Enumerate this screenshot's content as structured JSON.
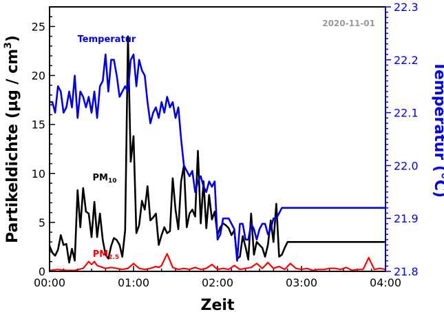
{
  "chart_data": {
    "type": "line",
    "date": "2020-11-01",
    "xlabel": "Zeit",
    "ylabel_left": "Partikeldichte (µg / cm³)",
    "ylabel_left_parts": {
      "main": "Partikeldichte (µg / cm",
      "sup": "3",
      "close": ")"
    },
    "ylabel_right": "Temperatur (°C)",
    "x_ticks": [
      "00:00",
      "01:00",
      "02:00",
      "03:00",
      "04:00"
    ],
    "x_range_minutes": [
      0,
      240
    ],
    "y_left_range": [
      0,
      27
    ],
    "y_left_ticks": [
      0,
      5,
      10,
      15,
      20,
      25
    ],
    "y_right_range": [
      21.8,
      22.3
    ],
    "y_right_ticks": [
      "21.8",
      "21.9",
      "22.0",
      "22.1",
      "22.2",
      "22.3"
    ],
    "colors": {
      "pm10": "#000000",
      "pm25": "#ff0000",
      "temperature": "#0000e0"
    },
    "series": [
      {
        "name": "PM10",
        "label_main": "PM",
        "label_sub": "10",
        "axis": "left",
        "x": [
          0,
          2,
          4,
          6,
          8,
          10,
          12,
          14,
          16,
          18,
          20,
          22,
          24,
          26,
          28,
          30,
          32,
          34,
          36,
          38,
          40,
          42,
          44,
          46,
          48,
          50,
          52,
          54,
          56,
          58,
          60,
          62,
          64,
          66,
          68,
          70,
          72,
          74,
          76,
          78,
          80,
          82,
          84,
          86,
          88,
          90,
          92,
          94,
          96,
          98,
          100,
          102,
          104,
          106,
          108,
          110,
          112,
          114,
          116,
          118,
          120,
          122,
          124,
          126,
          128,
          130,
          132,
          134,
          136,
          138,
          140,
          142,
          144,
          146,
          148,
          150,
          152,
          154,
          156,
          158,
          160,
          162,
          164,
          166,
          168,
          170,
          172,
          174,
          176,
          178,
          180,
          182,
          184,
          186,
          188,
          190,
          192,
          194,
          196,
          198,
          200,
          202,
          204,
          206,
          208,
          210,
          212,
          214,
          216,
          218,
          220,
          222,
          224,
          226,
          228,
          230,
          232,
          234,
          236,
          238,
          240
        ],
        "values": [
          2.6,
          1.9,
          1.6,
          2.2,
          3.7,
          2.7,
          2.8,
          0.9,
          2.3,
          1.1,
          8.3,
          4.5,
          8.5,
          6.1,
          5.9,
          3.5,
          7.1,
          3.5,
          5.9,
          3.2,
          1.7,
          1.3,
          2.6,
          3.4,
          3.2,
          2.7,
          1.5,
          4.2,
          24,
          11.2,
          13.8,
          3.9,
          4.7,
          7.2,
          6.3,
          8.7,
          5.2,
          5.5,
          5.9,
          2.7,
          3.7,
          4.5,
          3.9,
          4.1,
          9.5,
          6.3,
          4.3,
          9.2,
          10.8,
          4.5,
          5.9,
          6.3,
          5.6,
          12.3,
          4.9,
          9.2,
          4.4,
          7.8,
          5.3,
          6.1,
          3.7,
          4.5,
          4.9,
          4.7,
          4.4,
          3.7,
          4.2,
          1.3,
          1.5,
          3.6,
          2.5,
          1.2,
          5.9,
          1.7,
          3.0,
          2.7,
          2.4,
          1.5,
          2.7,
          5.2,
          3.0,
          6.9,
          1.5,
          1.7,
          2.4,
          3.0,
          3.0,
          3.0,
          3.0,
          3.0,
          3.0,
          3.0,
          3.0,
          3.0,
          3.0,
          3.0,
          3.0,
          3.0,
          3.0,
          3.0,
          3.0,
          3.0,
          3.0,
          3.0,
          3.0,
          3.0,
          3.0,
          3.0,
          3.0,
          3.0,
          3.0,
          3.0,
          3.0,
          3.0,
          3.0,
          3.0,
          3.0,
          3.0,
          3.0,
          3.0,
          3.0
        ]
      },
      {
        "name": "PM2.5",
        "label_main": "PM",
        "label_sub": "2.5",
        "axis": "left",
        "x": [
          0,
          6,
          12,
          18,
          24,
          28,
          30,
          32,
          34,
          36,
          40,
          44,
          48,
          52,
          56,
          60,
          64,
          68,
          72,
          76,
          78,
          80,
          84,
          88,
          92,
          96,
          100,
          104,
          108,
          112,
          116,
          120,
          124,
          128,
          132,
          136,
          140,
          144,
          148,
          152,
          156,
          160,
          164,
          168,
          172,
          176,
          180,
          184,
          188,
          192,
          196,
          200,
          204,
          208,
          212,
          216,
          220,
          224,
          228,
          232,
          236,
          240
        ],
        "values": [
          0.1,
          0.2,
          0.1,
          0.1,
          0.3,
          1.0,
          0.7,
          1.0,
          0.6,
          0.5,
          0.3,
          0.4,
          0.3,
          0.2,
          0.3,
          0.8,
          0.3,
          0.2,
          0.3,
          0.5,
          0.4,
          0.6,
          1.8,
          0.4,
          0.2,
          0.3,
          0.2,
          0.4,
          0.2,
          0.3,
          0.7,
          0.2,
          0.3,
          0.2,
          0.6,
          0.2,
          0.3,
          0.4,
          0.8,
          0.3,
          0.9,
          0.3,
          0.5,
          0.2,
          0.8,
          0.3,
          0.2,
          0.3,
          0.1,
          0.2,
          0.2,
          0.3,
          0.3,
          0.2,
          0.4,
          0.1,
          0.2,
          0.2,
          1.4,
          0.2,
          0.3,
          0.2
        ]
      },
      {
        "name": "Temperatur",
        "label": "Temperatur",
        "axis": "right",
        "x": [
          0,
          2,
          4,
          6,
          8,
          10,
          12,
          14,
          16,
          18,
          20,
          22,
          24,
          26,
          28,
          30,
          32,
          34,
          36,
          38,
          40,
          42,
          44,
          46,
          48,
          50,
          52,
          54,
          56,
          58,
          60,
          62,
          64,
          66,
          68,
          70,
          72,
          74,
          76,
          78,
          80,
          82,
          84,
          86,
          88,
          90,
          92,
          94,
          96,
          98,
          100,
          102,
          104,
          106,
          108,
          110,
          112,
          114,
          116,
          118,
          120,
          122,
          124,
          126,
          128,
          130,
          132,
          134,
          136,
          138,
          140,
          142,
          144,
          146,
          148,
          150,
          152,
          154,
          156,
          158,
          160,
          162,
          164,
          166,
          168,
          170,
          172,
          174,
          176,
          178,
          180,
          182,
          184,
          186,
          188,
          190,
          192,
          194,
          196,
          198,
          200,
          202,
          204,
          206,
          208,
          210,
          212,
          214,
          216,
          218,
          220,
          222,
          224,
          226,
          228,
          230,
          232,
          234,
          236,
          238,
          240
        ],
        "values": [
          22.12,
          22.12,
          22.1,
          22.15,
          22.14,
          22.1,
          22.11,
          22.14,
          22.11,
          22.17,
          22.09,
          22.14,
          22.13,
          22.11,
          22.13,
          22.1,
          22.14,
          22.09,
          22.15,
          22.16,
          22.21,
          22.14,
          22.2,
          22.2,
          22.17,
          22.13,
          22.14,
          22.15,
          22.14,
          22.2,
          22.21,
          22.15,
          22.2,
          22.18,
          22.17,
          22.12,
          22.08,
          22.1,
          22.11,
          22.09,
          22.12,
          22.1,
          22.13,
          22.11,
          22.12,
          22.09,
          22.11,
          22.05,
          22.0,
          21.99,
          21.98,
          21.99,
          21.95,
          21.97,
          21.98,
          21.96,
          21.95,
          21.97,
          21.96,
          21.97,
          21.86,
          21.87,
          21.9,
          21.9,
          21.9,
          21.89,
          21.88,
          21.82,
          21.89,
          21.89,
          21.86,
          21.86,
          21.89,
          21.88,
          21.86,
          21.88,
          21.89,
          21.89,
          21.87,
          21.88,
          21.9,
          21.9,
          21.91,
          21.92,
          21.92,
          21.92,
          21.92,
          21.92,
          21.92,
          21.92,
          21.92,
          21.92,
          21.92,
          21.92,
          21.92,
          21.92,
          21.92,
          21.92,
          21.92,
          21.92,
          21.92,
          21.92,
          21.92,
          21.92,
          21.92,
          21.92,
          21.92,
          21.92,
          21.92,
          21.92,
          21.92,
          21.92,
          21.92,
          21.92,
          21.92,
          21.92,
          21.92,
          21.92,
          21.92,
          21.92,
          21.92
        ]
      }
    ]
  }
}
